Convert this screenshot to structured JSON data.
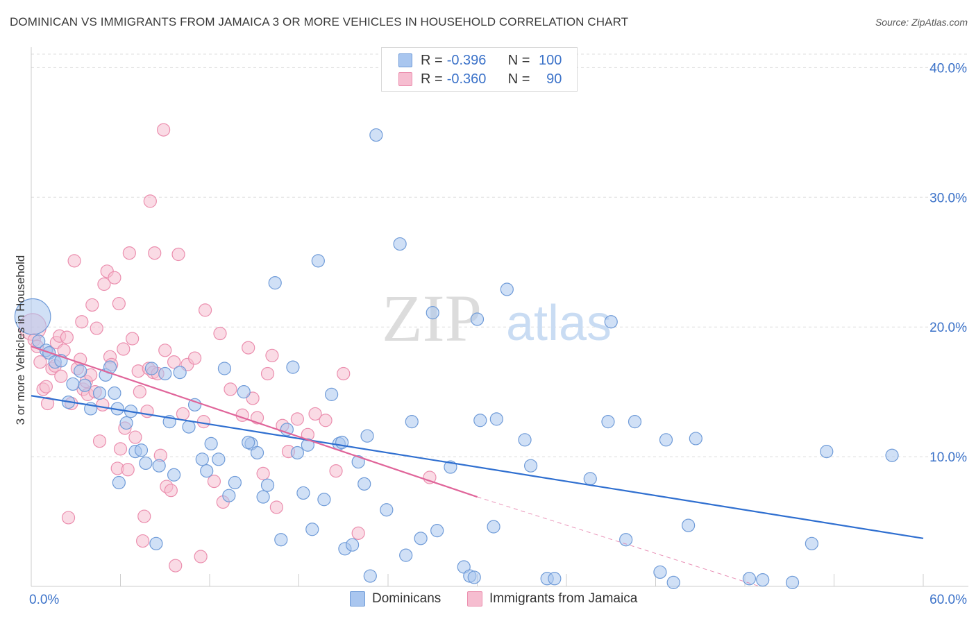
{
  "title": "DOMINICAN VS IMMIGRANTS FROM JAMAICA 3 OR MORE VEHICLES IN HOUSEHOLD CORRELATION CHART",
  "source": "Source: ZipAtlas.com",
  "watermark": {
    "zip": "ZIP",
    "atlas": "atlas"
  },
  "legend": {
    "series1": {
      "r_label": "R =",
      "r_value": "-0.396",
      "n_label": "N =",
      "n_value": "100"
    },
    "series2": {
      "r_label": "R =",
      "r_value": "-0.360",
      "n_label": "N =",
      "n_value": "90"
    }
  },
  "bottom_legend": {
    "series1": "Dominicans",
    "series2": "Immigrants from Jamaica"
  },
  "colors": {
    "blue_fill": "#a9c6ef",
    "blue_stroke": "#6f9bd8",
    "blue_line": "#2f6fd0",
    "pink_fill": "#f6bdd0",
    "pink_stroke": "#eb8eae",
    "pink_line": "#e0659a",
    "tick_label": "#3b72c9",
    "grid": "#dddddd"
  },
  "chart_data": {
    "type": "scatter",
    "title": "DOMINICAN VS IMMIGRANTS FROM JAMAICA 3 OR MORE VEHICLES IN HOUSEHOLD CORRELATION CHART",
    "xlabel": "",
    "ylabel": "3 or more Vehicles in Household",
    "xlim": [
      0,
      60
    ],
    "ylim": [
      0,
      42
    ],
    "x_tick_labels": [
      "0.0%",
      "60.0%"
    ],
    "y_ticks": [
      10,
      20,
      30,
      40
    ],
    "y_tick_labels": [
      "10.0%",
      "20.0%",
      "30.0%",
      "40.0%"
    ],
    "grid": true,
    "legend_position": "top-center",
    "series": [
      {
        "name": "Dominicans",
        "color": "#a9c6ef",
        "trend": {
          "x0": 0,
          "y0": 14.7,
          "x1": 60,
          "y1": 3.7
        },
        "points": [
          [
            0.1,
            20.8,
            4
          ],
          [
            0.5,
            18.9,
            1.4
          ],
          [
            1.0,
            18.2,
            1.4
          ],
          [
            1.2,
            18.0,
            1.4
          ],
          [
            1.6,
            17.3,
            1.4
          ],
          [
            2.0,
            17.4,
            1.4
          ],
          [
            2.5,
            14.2,
            1.4
          ],
          [
            2.8,
            15.6,
            1.4
          ],
          [
            3.3,
            16.6,
            1.4
          ],
          [
            3.6,
            15.5,
            1.4
          ],
          [
            4.0,
            13.7,
            1.4
          ],
          [
            4.6,
            14.9,
            1.4
          ],
          [
            5.0,
            16.3,
            1.4
          ],
          [
            5.3,
            16.9,
            1.4
          ],
          [
            5.6,
            14.9,
            1.4
          ],
          [
            5.8,
            13.7,
            1.4
          ],
          [
            5.9,
            8.0,
            1.4
          ],
          [
            6.4,
            12.6,
            1.4
          ],
          [
            6.7,
            13.5,
            1.4
          ],
          [
            7.0,
            10.4,
            1.4
          ],
          [
            7.4,
            10.5,
            1.4
          ],
          [
            7.7,
            9.5,
            1.4
          ],
          [
            8.1,
            16.8,
            1.4
          ],
          [
            8.4,
            3.3,
            1.4
          ],
          [
            8.6,
            9.3,
            1.4
          ],
          [
            9.0,
            16.4,
            1.4
          ],
          [
            9.3,
            12.7,
            1.4
          ],
          [
            9.6,
            8.6,
            1.4
          ],
          [
            10.0,
            16.5,
            1.4
          ],
          [
            10.6,
            12.3,
            1.4
          ],
          [
            11.0,
            14.0,
            1.4
          ],
          [
            11.5,
            9.8,
            1.4
          ],
          [
            11.8,
            8.9,
            1.4
          ],
          [
            12.1,
            11.0,
            1.4
          ],
          [
            12.6,
            9.8,
            1.4
          ],
          [
            13.0,
            16.8,
            1.4
          ],
          [
            13.3,
            7.0,
            1.4
          ],
          [
            13.7,
            8.0,
            1.4
          ],
          [
            14.3,
            15.0,
            1.4
          ],
          [
            14.8,
            11.0,
            1.4
          ],
          [
            15.2,
            10.3,
            1.4
          ],
          [
            15.6,
            6.9,
            1.4
          ],
          [
            15.9,
            7.8,
            1.4
          ],
          [
            16.4,
            23.4,
            1.4
          ],
          [
            16.8,
            3.6,
            1.4
          ],
          [
            17.2,
            12.1,
            1.4
          ],
          [
            17.6,
            16.9,
            1.4
          ],
          [
            17.9,
            10.3,
            1.4
          ],
          [
            18.3,
            7.2,
            1.4
          ],
          [
            18.6,
            10.9,
            1.4
          ],
          [
            18.9,
            4.4,
            1.4
          ],
          [
            19.3,
            25.1,
            1.4
          ],
          [
            19.7,
            6.7,
            1.4
          ],
          [
            20.2,
            14.8,
            1.4
          ],
          [
            20.7,
            11.0,
            1.4
          ],
          [
            21.1,
            2.9,
            1.4
          ],
          [
            21.6,
            3.2,
            1.4
          ],
          [
            22.0,
            9.6,
            1.4
          ],
          [
            22.4,
            7.9,
            1.4
          ],
          [
            22.6,
            11.6,
            1.4
          ],
          [
            22.8,
            0.8,
            1.4
          ],
          [
            23.2,
            34.8,
            1.4
          ],
          [
            23.9,
            5.9,
            1.4
          ],
          [
            24.8,
            26.4,
            1.4
          ],
          [
            25.2,
            2.4,
            1.4
          ],
          [
            25.6,
            12.7,
            1.4
          ],
          [
            26.2,
            3.7,
            1.4
          ],
          [
            27.0,
            21.1,
            1.4
          ],
          [
            27.3,
            4.3,
            1.4
          ],
          [
            28.2,
            9.2,
            1.4
          ],
          [
            29.1,
            1.5,
            1.4
          ],
          [
            29.5,
            0.8,
            1.4
          ],
          [
            29.8,
            0.7,
            1.4
          ],
          [
            30.0,
            20.6,
            1.4
          ],
          [
            30.2,
            12.8,
            1.4
          ],
          [
            31.1,
            4.6,
            1.4
          ],
          [
            32.0,
            22.9,
            1.4
          ],
          [
            33.2,
            11.3,
            1.4
          ],
          [
            33.6,
            9.3,
            1.4
          ],
          [
            34.7,
            0.6,
            1.4
          ],
          [
            35.2,
            0.6,
            1.4
          ],
          [
            37.6,
            8.3,
            1.4
          ],
          [
            38.8,
            12.7,
            1.4
          ],
          [
            39.0,
            20.4,
            1.4
          ],
          [
            40.0,
            3.6,
            1.4
          ],
          [
            40.6,
            12.7,
            1.4
          ],
          [
            42.3,
            1.1,
            1.4
          ],
          [
            42.7,
            11.3,
            1.4
          ],
          [
            43.2,
            0.3,
            1.4
          ],
          [
            44.2,
            4.7,
            1.4
          ],
          [
            44.7,
            11.4,
            1.4
          ],
          [
            48.3,
            0.6,
            1.4
          ],
          [
            49.2,
            0.5,
            1.4
          ],
          [
            51.2,
            0.3,
            1.4
          ],
          [
            52.5,
            3.3,
            1.4
          ],
          [
            53.5,
            10.4,
            1.4
          ],
          [
            57.9,
            10.1,
            1.4
          ],
          [
            20.9,
            11.1,
            1.4
          ],
          [
            14.6,
            11.1,
            1.4
          ],
          [
            31.3,
            12.9,
            1.4
          ]
        ]
      },
      {
        "name": "Immigrants from Jamaica",
        "color": "#f6bdd0",
        "trend": {
          "x0": 0,
          "y0": 18.5,
          "x1": 30,
          "y1": 6.9,
          "dash_x1": 49,
          "dash_y1": 0
        },
        "points": [
          [
            0.1,
            20.0,
            3
          ],
          [
            0.2,
            19.0,
            1.4
          ],
          [
            0.4,
            18.5,
            1.4
          ],
          [
            0.6,
            17.3,
            1.4
          ],
          [
            0.8,
            15.2,
            1.4
          ],
          [
            1.0,
            15.4,
            1.4
          ],
          [
            1.1,
            14.1,
            1.4
          ],
          [
            1.2,
            18.0,
            1.4
          ],
          [
            1.4,
            16.8,
            1.4
          ],
          [
            1.6,
            17.0,
            1.4
          ],
          [
            1.7,
            18.8,
            1.4
          ],
          [
            1.9,
            19.3,
            1.4
          ],
          [
            2.0,
            16.2,
            1.4
          ],
          [
            2.2,
            18.2,
            1.4
          ],
          [
            2.4,
            19.2,
            1.4
          ],
          [
            2.5,
            5.3,
            1.4
          ],
          [
            2.7,
            14.1,
            1.4
          ],
          [
            2.9,
            25.1,
            1.4
          ],
          [
            3.1,
            16.8,
            1.4
          ],
          [
            3.3,
            17.5,
            1.4
          ],
          [
            3.4,
            20.4,
            1.4
          ],
          [
            3.5,
            15.2,
            1.4
          ],
          [
            3.7,
            15.8,
            1.4
          ],
          [
            3.8,
            14.8,
            1.4
          ],
          [
            4.0,
            16.3,
            1.4
          ],
          [
            4.1,
            21.7,
            1.4
          ],
          [
            4.3,
            15.0,
            1.4
          ],
          [
            4.4,
            19.9,
            1.4
          ],
          [
            4.6,
            11.2,
            1.4
          ],
          [
            4.8,
            14.0,
            1.4
          ],
          [
            4.9,
            23.3,
            1.4
          ],
          [
            5.1,
            24.3,
            1.4
          ],
          [
            5.3,
            17.7,
            1.4
          ],
          [
            5.4,
            17.1,
            1.4
          ],
          [
            5.6,
            23.8,
            1.4
          ],
          [
            5.8,
            9.1,
            1.4
          ],
          [
            5.9,
            21.8,
            1.4
          ],
          [
            6.0,
            10.6,
            1.4
          ],
          [
            6.2,
            18.3,
            1.4
          ],
          [
            6.3,
            12.2,
            1.4
          ],
          [
            6.5,
            9.0,
            1.4
          ],
          [
            6.6,
            25.7,
            1.4
          ],
          [
            6.8,
            19.1,
            1.4
          ],
          [
            7.0,
            11.5,
            1.4
          ],
          [
            7.2,
            16.6,
            1.4
          ],
          [
            7.3,
            15.0,
            1.4
          ],
          [
            7.5,
            3.5,
            1.4
          ],
          [
            7.6,
            5.4,
            1.4
          ],
          [
            7.8,
            13.5,
            1.4
          ],
          [
            7.9,
            16.8,
            1.4
          ],
          [
            8.0,
            29.7,
            1.4
          ],
          [
            8.2,
            16.5,
            1.4
          ],
          [
            8.3,
            25.7,
            1.4
          ],
          [
            8.5,
            16.4,
            1.4
          ],
          [
            8.7,
            10.1,
            1.4
          ],
          [
            8.9,
            35.2,
            1.4
          ],
          [
            9.0,
            18.2,
            1.4
          ],
          [
            9.1,
            7.7,
            1.4
          ],
          [
            9.4,
            7.4,
            1.4
          ],
          [
            9.6,
            17.3,
            1.4
          ],
          [
            9.7,
            1.6,
            1.4
          ],
          [
            9.9,
            25.6,
            1.4
          ],
          [
            10.2,
            13.3,
            1.4
          ],
          [
            10.5,
            17.1,
            1.4
          ],
          [
            11.0,
            17.6,
            1.4
          ],
          [
            11.4,
            2.3,
            1.4
          ],
          [
            11.7,
            21.3,
            1.4
          ],
          [
            12.3,
            8.1,
            1.4
          ],
          [
            12.7,
            19.5,
            1.4
          ],
          [
            12.9,
            6.5,
            1.4
          ],
          [
            13.4,
            15.2,
            1.4
          ],
          [
            14.2,
            13.2,
            1.4
          ],
          [
            14.6,
            18.4,
            1.4
          ],
          [
            14.9,
            14.5,
            1.4
          ],
          [
            15.2,
            13.0,
            1.4
          ],
          [
            15.6,
            8.7,
            1.4
          ],
          [
            15.9,
            16.4,
            1.4
          ],
          [
            16.2,
            17.8,
            1.4
          ],
          [
            16.5,
            6.1,
            1.4
          ],
          [
            16.9,
            12.4,
            1.4
          ],
          [
            17.3,
            10.4,
            1.4
          ],
          [
            17.9,
            12.9,
            1.4
          ],
          [
            18.6,
            11.7,
            1.4
          ],
          [
            19.1,
            13.3,
            1.4
          ],
          [
            19.8,
            12.8,
            1.4
          ],
          [
            20.5,
            8.9,
            1.4
          ],
          [
            21.0,
            16.4,
            1.4
          ],
          [
            22.0,
            4.1,
            1.4
          ],
          [
            26.8,
            8.4,
            1.4
          ],
          [
            11.6,
            12.7,
            1.4
          ]
        ]
      }
    ]
  }
}
